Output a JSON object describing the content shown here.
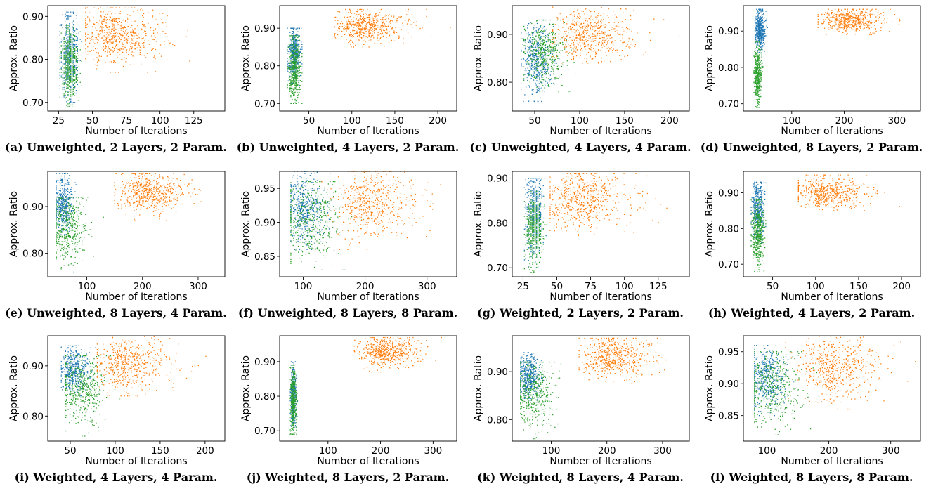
{
  "figure": {
    "colors": {
      "blue": "#1f77b4",
      "green": "#2ca02c",
      "orange": "#ff7f0e"
    }
  },
  "chart_data": [
    {
      "id": "a",
      "caption": "(a) Unweighted, 2 Layers, 2 Param.",
      "type": "scatter",
      "xlabel": "Number of Iterations",
      "ylabel": "Approx. Ratio",
      "xlim": [
        17,
        148
      ],
      "ylim": [
        0.68,
        0.925
      ],
      "xticks": [
        25,
        50,
        75,
        100,
        125
      ],
      "yticks": [
        0.7,
        0.8,
        0.9
      ],
      "xtick_labels": [
        "25",
        "50",
        "75",
        "100",
        "125"
      ],
      "ytick_labels": [
        "0.70",
        "0.80",
        "0.90"
      ],
      "grid": false,
      "clusters": [
        {
          "color": "blue",
          "x_range": [
            26,
            42
          ],
          "y_range": [
            0.7,
            0.91
          ],
          "x_mean": 33,
          "y_mean": 0.81,
          "n": 500
        },
        {
          "color": "green",
          "x_range": [
            26,
            42
          ],
          "y_range": [
            0.69,
            0.88
          ],
          "x_mean": 33,
          "y_mean": 0.79,
          "n": 500
        },
        {
          "color": "orange",
          "x_range": [
            45,
            142
          ],
          "y_range": [
            0.77,
            0.92
          ],
          "x_mean": 68,
          "y_mean": 0.855,
          "n": 600
        }
      ]
    },
    {
      "id": "b",
      "caption": "(b) Unweighted, 4 Layers, 2 Param.",
      "type": "scatter",
      "xlabel": "Number of Iterations",
      "ylabel": "Approx. Ratio",
      "xlim": [
        16,
        222
      ],
      "ylim": [
        0.68,
        0.96
      ],
      "xticks": [
        50,
        100,
        150,
        200
      ],
      "yticks": [
        0.7,
        0.8,
        0.9
      ],
      "xtick_labels": [
        "50",
        "100",
        "150",
        "200"
      ],
      "ytick_labels": [
        "0.70",
        "0.80",
        "0.90"
      ],
      "grid": false,
      "clusters": [
        {
          "color": "blue",
          "x_range": [
            25,
            42
          ],
          "y_range": [
            0.74,
            0.9
          ],
          "x_mean": 33,
          "y_mean": 0.83,
          "n": 450
        },
        {
          "color": "green",
          "x_range": [
            25,
            42
          ],
          "y_range": [
            0.7,
            0.88
          ],
          "x_mean": 33,
          "y_mean": 0.79,
          "n": 450
        },
        {
          "color": "orange",
          "x_range": [
            80,
            215
          ],
          "y_range": [
            0.85,
            0.95
          ],
          "x_mean": 115,
          "y_mean": 0.905,
          "n": 550
        }
      ]
    },
    {
      "id": "c",
      "caption": "(c) Unweighted, 4 Layers, 4 Param.",
      "type": "scatter",
      "xlabel": "Number of Iterations",
      "ylabel": "Approx. Ratio",
      "xlim": [
        25,
        222
      ],
      "ylim": [
        0.74,
        0.96
      ],
      "xticks": [
        50,
        100,
        150,
        200
      ],
      "yticks": [
        0.8,
        0.9
      ],
      "xtick_labels": [
        "50",
        "100",
        "150",
        "200"
      ],
      "ytick_labels": [
        "0.80",
        "0.90"
      ],
      "grid": false,
      "clusters": [
        {
          "color": "blue",
          "x_range": [
            35,
            80
          ],
          "y_range": [
            0.76,
            0.93
          ],
          "x_mean": 52,
          "y_mean": 0.845,
          "n": 450
        },
        {
          "color": "green",
          "x_range": [
            38,
            95
          ],
          "y_range": [
            0.78,
            0.93
          ],
          "x_mean": 62,
          "y_mean": 0.86,
          "n": 450
        },
        {
          "color": "orange",
          "x_range": [
            70,
            215
          ],
          "y_range": [
            0.84,
            0.96
          ],
          "x_mean": 110,
          "y_mean": 0.9,
          "n": 550
        }
      ]
    },
    {
      "id": "d",
      "caption": "(d) Unweighted, 8 Layers, 2 Param.",
      "type": "scatter",
      "xlabel": "Number of Iterations",
      "ylabel": "Approx. Ratio",
      "xlim": [
        8,
        345
      ],
      "ylim": [
        0.68,
        0.97
      ],
      "xticks": [
        100,
        200,
        300
      ],
      "yticks": [
        0.7,
        0.8,
        0.9
      ],
      "xtick_labels": [
        "100",
        "200",
        "300"
      ],
      "ytick_labels": [
        "0.70",
        "0.80",
        "0.90"
      ],
      "grid": false,
      "clusters": [
        {
          "color": "blue",
          "x_range": [
            30,
            55
          ],
          "y_range": [
            0.84,
            0.96
          ],
          "x_mean": 40,
          "y_mean": 0.905,
          "n": 450
        },
        {
          "color": "green",
          "x_range": [
            28,
            45
          ],
          "y_range": [
            0.69,
            0.87
          ],
          "x_mean": 35,
          "y_mean": 0.78,
          "n": 450
        },
        {
          "color": "orange",
          "x_range": [
            150,
            335
          ],
          "y_range": [
            0.89,
            0.96
          ],
          "x_mean": 210,
          "y_mean": 0.93,
          "n": 550
        }
      ]
    },
    {
      "id": "e",
      "caption": "(e) Unweighted, 8 Layers, 4 Param.",
      "type": "scatter",
      "xlabel": "Number of Iterations",
      "ylabel": "Approx. Ratio",
      "xlim": [
        30,
        348
      ],
      "ylim": [
        0.75,
        0.975
      ],
      "xticks": [
        100,
        200,
        300
      ],
      "yticks": [
        0.8,
        0.9
      ],
      "xtick_labels": [
        "100",
        "200",
        "300"
      ],
      "ytick_labels": [
        "0.80",
        "0.90"
      ],
      "grid": false,
      "clusters": [
        {
          "color": "blue",
          "x_range": [
            45,
            90
          ],
          "y_range": [
            0.84,
            0.97
          ],
          "x_mean": 58,
          "y_mean": 0.905,
          "n": 450
        },
        {
          "color": "green",
          "x_range": [
            45,
            130
          ],
          "y_range": [
            0.76,
            0.92
          ],
          "x_mean": 65,
          "y_mean": 0.855,
          "n": 450
        },
        {
          "color": "orange",
          "x_range": [
            150,
            340
          ],
          "y_range": [
            0.87,
            0.97
          ],
          "x_mean": 210,
          "y_mean": 0.93,
          "n": 550
        }
      ]
    },
    {
      "id": "f",
      "caption": "(f) Unweighted, 8 Layers, 8 Param.",
      "type": "scatter",
      "xlabel": "Number of Iterations",
      "ylabel": "Approx. Ratio",
      "xlim": [
        62,
        348
      ],
      "ylim": [
        0.82,
        0.975
      ],
      "xticks": [
        100,
        200,
        300
      ],
      "yticks": [
        0.85,
        0.9,
        0.95
      ],
      "xtick_labels": [
        "100",
        "200",
        "300"
      ],
      "ytick_labels": [
        "0.85",
        "0.90",
        "0.95"
      ],
      "grid": false,
      "clusters": [
        {
          "color": "blue",
          "x_range": [
            80,
            150
          ],
          "y_range": [
            0.86,
            0.975
          ],
          "x_mean": 102,
          "y_mean": 0.92,
          "n": 450
        },
        {
          "color": "green",
          "x_range": [
            80,
            200
          ],
          "y_range": [
            0.83,
            0.96
          ],
          "x_mean": 115,
          "y_mean": 0.905,
          "n": 450
        },
        {
          "color": "orange",
          "x_range": [
            130,
            340
          ],
          "y_range": [
            0.86,
            0.975
          ],
          "x_mean": 210,
          "y_mean": 0.93,
          "n": 550
        }
      ]
    },
    {
      "id": "g",
      "caption": "(g) Weighted, 2 Layers, 2 Param.",
      "type": "scatter",
      "xlabel": "Number of Iterations",
      "ylabel": "Approx. Ratio",
      "xlim": [
        17,
        148
      ],
      "ylim": [
        0.68,
        0.915
      ],
      "xticks": [
        25,
        50,
        75,
        100,
        125
      ],
      "yticks": [
        0.7,
        0.8,
        0.9
      ],
      "xtick_labels": [
        "25",
        "50",
        "75",
        "100",
        "125"
      ],
      "ytick_labels": [
        "0.70",
        "0.80",
        "0.90"
      ],
      "grid": false,
      "clusters": [
        {
          "color": "blue",
          "x_range": [
            26,
            42
          ],
          "y_range": [
            0.7,
            0.9
          ],
          "x_mean": 33,
          "y_mean": 0.82,
          "n": 500
        },
        {
          "color": "green",
          "x_range": [
            26,
            42
          ],
          "y_range": [
            0.69,
            0.87
          ],
          "x_mean": 33,
          "y_mean": 0.79,
          "n": 500
        },
        {
          "color": "orange",
          "x_range": [
            45,
            142
          ],
          "y_range": [
            0.77,
            0.91
          ],
          "x_mean": 68,
          "y_mean": 0.85,
          "n": 600
        }
      ]
    },
    {
      "id": "h",
      "caption": "(h) Weighted, 4 Layers, 2 Param.",
      "type": "scatter",
      "xlabel": "Number of Iterations",
      "ylabel": "Approx. Ratio",
      "xlim": [
        16,
        222
      ],
      "ylim": [
        0.665,
        0.96
      ],
      "xticks": [
        50,
        100,
        150,
        200
      ],
      "yticks": [
        0.7,
        0.8,
        0.9
      ],
      "xtick_labels": [
        "50",
        "100",
        "150",
        "200"
      ],
      "ytick_labels": [
        "0.70",
        "0.80",
        "0.90"
      ],
      "grid": false,
      "clusters": [
        {
          "color": "blue",
          "x_range": [
            25,
            42
          ],
          "y_range": [
            0.76,
            0.93
          ],
          "x_mean": 33,
          "y_mean": 0.85,
          "n": 450
        },
        {
          "color": "green",
          "x_range": [
            25,
            42
          ],
          "y_range": [
            0.68,
            0.88
          ],
          "x_mean": 33,
          "y_mean": 0.79,
          "n": 450
        },
        {
          "color": "orange",
          "x_range": [
            80,
            215
          ],
          "y_range": [
            0.85,
            0.95
          ],
          "x_mean": 112,
          "y_mean": 0.9,
          "n": 550
        }
      ]
    },
    {
      "id": "i",
      "caption": "(i) Weighted, 4 Layers, 4 Param.",
      "type": "scatter",
      "xlabel": "Number of Iterations",
      "ylabel": "Approx. Ratio",
      "xlim": [
        25,
        222
      ],
      "ylim": [
        0.75,
        0.96
      ],
      "xticks": [
        50,
        100,
        150,
        200
      ],
      "yticks": [
        0.8,
        0.9
      ],
      "xtick_labels": [
        "50",
        "100",
        "150",
        "200"
      ],
      "ytick_labels": [
        "0.80",
        "0.90"
      ],
      "grid": false,
      "clusters": [
        {
          "color": "blue",
          "x_range": [
            40,
            80
          ],
          "y_range": [
            0.84,
            0.94
          ],
          "x_mean": 55,
          "y_mean": 0.89,
          "n": 450
        },
        {
          "color": "green",
          "x_range": [
            45,
            110
          ],
          "y_range": [
            0.76,
            0.92
          ],
          "x_mean": 65,
          "y_mean": 0.855,
          "n": 450
        },
        {
          "color": "orange",
          "x_range": [
            80,
            215
          ],
          "y_range": [
            0.84,
            0.96
          ],
          "x_mean": 112,
          "y_mean": 0.905,
          "n": 550
        }
      ]
    },
    {
      "id": "j",
      "caption": "(j) Weighted, 8 Layers, 2 Param.",
      "type": "scatter",
      "xlabel": "Number of Iterations",
      "ylabel": "Approx. Ratio",
      "xlim": [
        8,
        345
      ],
      "ylim": [
        0.67,
        0.975
      ],
      "xticks": [
        100,
        200,
        300
      ],
      "yticks": [
        0.7,
        0.8,
        0.9
      ],
      "xtick_labels": [
        "100",
        "200",
        "300"
      ],
      "ytick_labels": [
        "0.70",
        "0.80",
        "0.90"
      ],
      "grid": false,
      "clusters": [
        {
          "color": "blue",
          "x_range": [
            28,
            42
          ],
          "y_range": [
            0.7,
            0.9
          ],
          "x_mean": 34,
          "y_mean": 0.8,
          "n": 400
        },
        {
          "color": "green",
          "x_range": [
            28,
            42
          ],
          "y_range": [
            0.69,
            0.89
          ],
          "x_mean": 34,
          "y_mean": 0.79,
          "n": 400
        },
        {
          "color": "orange",
          "x_range": [
            150,
            335
          ],
          "y_range": [
            0.87,
            0.97
          ],
          "x_mean": 210,
          "y_mean": 0.93,
          "n": 550
        }
      ]
    },
    {
      "id": "k",
      "caption": "(k) Weighted, 8 Layers, 4 Param.",
      "type": "scatter",
      "xlabel": "Number of Iterations",
      "ylabel": "Approx. Ratio",
      "xlim": [
        30,
        348
      ],
      "ylim": [
        0.755,
        0.975
      ],
      "xticks": [
        100,
        200,
        300
      ],
      "yticks": [
        0.8,
        0.9
      ],
      "xtick_labels": [
        "100",
        "200",
        "300"
      ],
      "ytick_labels": [
        "0.80",
        "0.90"
      ],
      "grid": false,
      "clusters": [
        {
          "color": "blue",
          "x_range": [
            45,
            95
          ],
          "y_range": [
            0.84,
            0.94
          ],
          "x_mean": 60,
          "y_mean": 0.89,
          "n": 450
        },
        {
          "color": "green",
          "x_range": [
            45,
            130
          ],
          "y_range": [
            0.76,
            0.92
          ],
          "x_mean": 68,
          "y_mean": 0.855,
          "n": 450
        },
        {
          "color": "orange",
          "x_range": [
            150,
            340
          ],
          "y_range": [
            0.87,
            0.97
          ],
          "x_mean": 210,
          "y_mean": 0.93,
          "n": 550
        }
      ]
    },
    {
      "id": "l",
      "caption": "(l) Weighted, 8 Layers, 8 Param.",
      "type": "scatter",
      "xlabel": "Number of Iterations",
      "ylabel": "Approx. Ratio",
      "xlim": [
        62,
        348
      ],
      "ylim": [
        0.81,
        0.975
      ],
      "xticks": [
        100,
        200,
        300
      ],
      "yticks": [
        0.85,
        0.9,
        0.95
      ],
      "xtick_labels": [
        "100",
        "200",
        "300"
      ],
      "ytick_labels": [
        "0.85",
        "0.90",
        "0.95"
      ],
      "grid": false,
      "clusters": [
        {
          "color": "blue",
          "x_range": [
            80,
            150
          ],
          "y_range": [
            0.85,
            0.96
          ],
          "x_mean": 100,
          "y_mean": 0.91,
          "n": 450
        },
        {
          "color": "green",
          "x_range": [
            80,
            200
          ],
          "y_range": [
            0.82,
            0.95
          ],
          "x_mean": 110,
          "y_mean": 0.895,
          "n": 450
        },
        {
          "color": "orange",
          "x_range": [
            130,
            340
          ],
          "y_range": [
            0.86,
            0.975
          ],
          "x_mean": 210,
          "y_mean": 0.925,
          "n": 550
        }
      ]
    }
  ]
}
